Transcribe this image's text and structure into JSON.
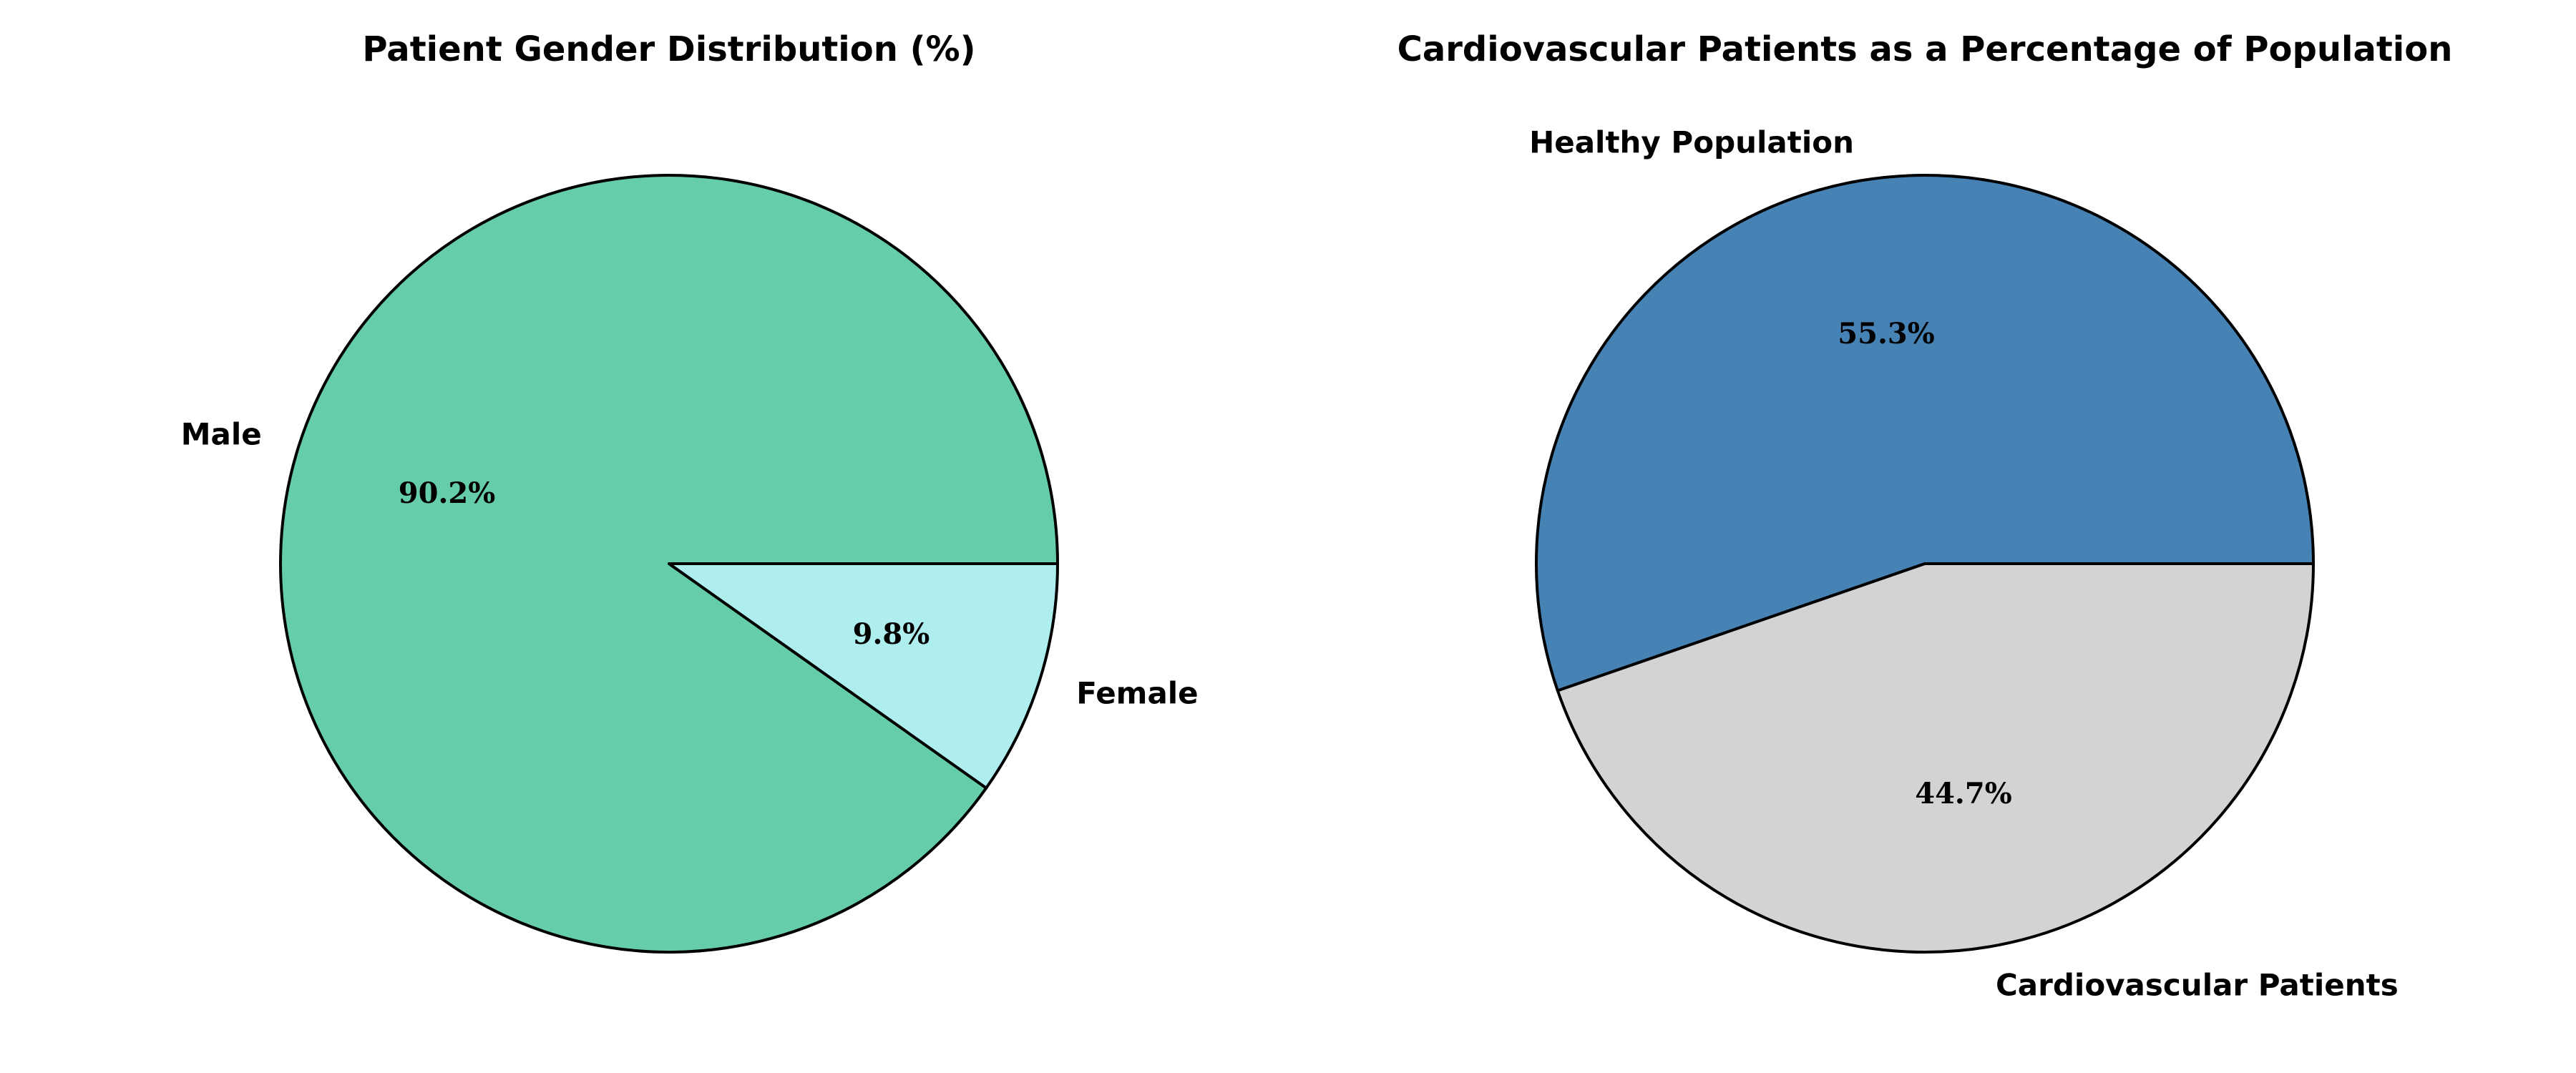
{
  "chart_data": [
    {
      "type": "pie",
      "title": "Patient Gender Distribution (%)",
      "categories": [
        "Male",
        "Female"
      ],
      "values": [
        90.2,
        9.8
      ],
      "percent_labels": [
        "90.2%",
        "9.8%"
      ],
      "colors": [
        "#66cdaa",
        "#afeeee"
      ],
      "start_angle_deg": 0,
      "direction": "counterclockwise",
      "legend": "none"
    },
    {
      "type": "pie",
      "title": "Cardiovascular Patients as a Percentage of Population",
      "categories": [
        "Healthy Population",
        "Cardiovascular Patients"
      ],
      "values": [
        55.3,
        44.7
      ],
      "percent_labels": [
        "55.3%",
        "44.7%"
      ],
      "colors": [
        "#4682b4",
        "#d3d3d3"
      ],
      "start_angle_deg": 0,
      "direction": "counterclockwise",
      "legend": "none"
    }
  ]
}
